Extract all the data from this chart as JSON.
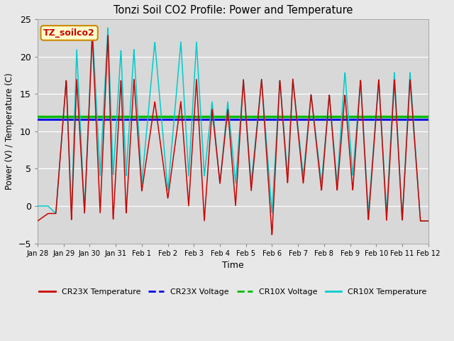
{
  "title": "Tonzi Soil CO2 Profile: Power and Temperature",
  "xlabel": "Time",
  "ylabel": "Power (V) / Temperature (C)",
  "ylim": [
    -5,
    25
  ],
  "yticks": [
    -5,
    0,
    5,
    10,
    15,
    20,
    25
  ],
  "x_tick_labels": [
    "Jan 28",
    "Jan 29",
    "Jan 30",
    "Jan 31",
    "Feb 1",
    "Feb 2",
    "Feb 3",
    "Feb 4",
    "Feb 5",
    "Feb 6",
    "Feb 7",
    "Feb 8",
    "Feb 9",
    "Feb 10",
    "Feb 11",
    "Feb 12"
  ],
  "cr23x_voltage_value": 11.6,
  "cr10x_voltage_value": 12.0,
  "cr23x_voltage_color": "#0000ee",
  "cr10x_voltage_color": "#00bb00",
  "cr23x_temp_color": "#cc0000",
  "cr10x_temp_color": "#00cccc",
  "annotation_text": "TZ_soilco2",
  "annotation_bg": "#ffffcc",
  "annotation_border": "#cc8800",
  "plot_bg_color": "#d8d8d8",
  "fig_bg_color": "#e8e8e8",
  "legend_items": [
    "CR23X Temperature",
    "CR23X Voltage",
    "CR10X Voltage",
    "CR10X Temperature"
  ],
  "legend_colors": [
    "#cc0000",
    "#0000ee",
    "#00bb00",
    "#00cccc"
  ],
  "peak_times": [
    0.4,
    1.1,
    1.5,
    2.1,
    2.7,
    3.2,
    3.7,
    4.5,
    5.5,
    6.1,
    6.7,
    7.3,
    7.9,
    8.6,
    9.3,
    9.8,
    10.5,
    11.2,
    11.8,
    12.4,
    13.1,
    13.7,
    14.3
  ],
  "peak_vals_r": [
    -1,
    17,
    17,
    23,
    23,
    17,
    17,
    14,
    14,
    17,
    13,
    13,
    17,
    17,
    17,
    17,
    15,
    15,
    15,
    17,
    17,
    17,
    17
  ],
  "peak_vals_c": [
    0,
    17,
    21,
    24,
    24,
    21,
    21,
    22,
    22,
    22,
    14,
    14,
    17,
    17,
    17,
    17,
    15,
    15,
    18,
    17,
    17,
    18,
    18
  ],
  "trough_times": [
    0.0,
    0.7,
    1.3,
    1.8,
    2.4,
    2.9,
    3.4,
    4.0,
    5.0,
    5.8,
    6.4,
    7.0,
    7.6,
    8.2,
    9.0,
    9.6,
    10.2,
    10.9,
    11.5,
    12.1,
    12.7,
    13.4,
    14.0,
    14.7
  ],
  "trough_vals_r": [
    -2,
    -1,
    -2,
    -1,
    -1,
    -2,
    -1,
    2,
    1,
    0,
    -2,
    3,
    0,
    2,
    -4,
    3,
    3,
    2,
    2,
    2,
    -2,
    -2,
    -2,
    -2
  ],
  "trough_vals_c": [
    0,
    -1,
    -1,
    -1,
    4,
    4,
    4,
    3,
    2,
    4,
    4,
    3,
    3,
    3,
    -1,
    4,
    4,
    3,
    3,
    4,
    -1,
    -1,
    -2,
    -2
  ]
}
